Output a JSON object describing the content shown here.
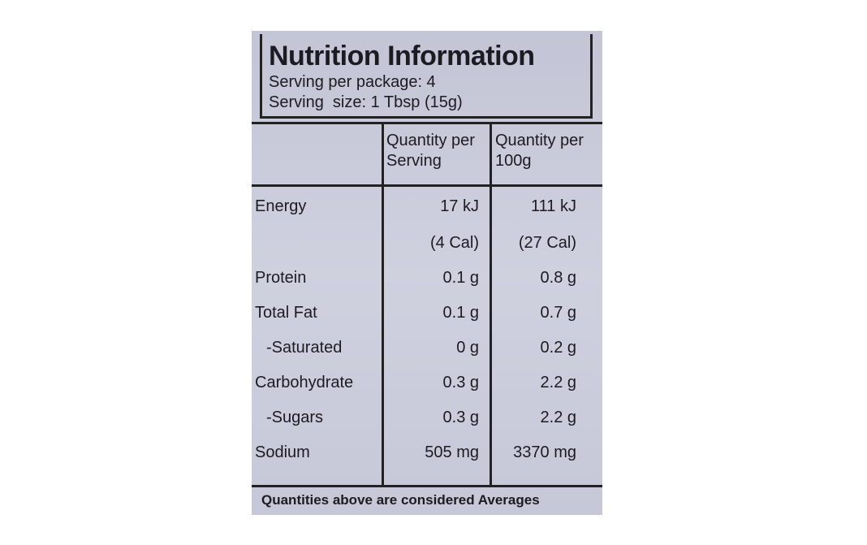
{
  "header": {
    "title": "Nutrition Information",
    "servings_per_package": "Serving per package: 4",
    "serving_size": "Serving  size: 1 Tbsp (15g)"
  },
  "table": {
    "columns": [
      "Quantity per Serving",
      "Quantity per 100g"
    ],
    "rows": [
      {
        "label": "Energy",
        "serving": [
          "17 kJ",
          "(4 Cal)"
        ],
        "per100": [
          "111 kJ",
          "(27 Cal)"
        ]
      },
      {
        "label": "Protein",
        "serving": [
          "0.1 g"
        ],
        "per100": [
          "0.8 g"
        ]
      },
      {
        "label": "Total Fat",
        "serving": [
          "0.1 g"
        ],
        "per100": [
          "0.7 g"
        ]
      },
      {
        "label": "-Saturated",
        "serving": [
          "0 g"
        ],
        "per100": [
          "0.2 g"
        ]
      },
      {
        "label": "Carbohydrate",
        "serving": [
          "0.3 g"
        ],
        "per100": [
          "2.2 g"
        ]
      },
      {
        "label": "-Sugars",
        "serving": [
          "0.3 g"
        ],
        "per100": [
          "2.2 g"
        ]
      },
      {
        "label": "Sodium",
        "serving": [
          "505 mg"
        ],
        "per100": [
          "3370 mg"
        ]
      }
    ]
  },
  "footnote": "Quantities above are considered Averages"
}
